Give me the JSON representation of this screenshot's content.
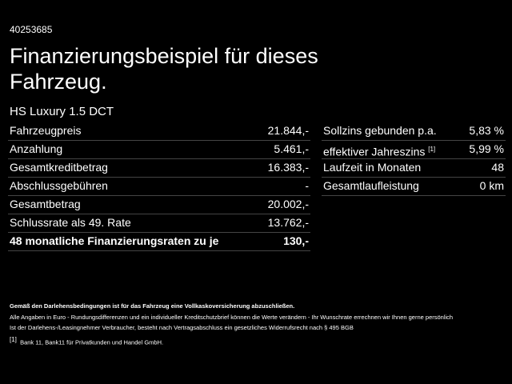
{
  "header": {
    "id": "40253685",
    "title_line1": "Finanzierungsbeispiel für dieses",
    "title_line2": "Fahrzeug.",
    "subtitle": "HS Luxury 1.5 DCT"
  },
  "left_table": {
    "rows": [
      [
        "Fahrzeugpreis",
        "21.844,-"
      ],
      [
        "Anzahlung",
        "5.461,-"
      ],
      [
        "Gesamtkreditbetrag",
        "16.383,-"
      ],
      [
        "Abschlussgebühren",
        "-"
      ],
      [
        "Gesamtbetrag",
        "20.002,-"
      ],
      [
        "Schlussrate als 49. Rate",
        "13.762,-"
      ],
      [
        "48 monatliche Finanzierungsraten zu je",
        "130,-"
      ]
    ]
  },
  "right_table": {
    "rows": [
      [
        "Sollzins gebunden p.a.",
        "5,83 %"
      ],
      [
        "effektiver Jahreszins",
        "5,99 %"
      ],
      [
        "Laufzeit in Monaten",
        "48"
      ],
      [
        "Gesamtlaufleistung",
        "0 km"
      ]
    ],
    "footnote_ref": "[1]"
  },
  "footer": {
    "bold_note": "Gemäß den Darlehensbedingungen ist für das Fahrzeug eine Vollkaskoversicherung abzuschließen.",
    "note_line1": "Alle Angaben in Euro - Rundungsdifferenzen und ein individueller Kreditschutzbrief können die Werte verändern - Ihr Wunschrate errechnen wir Ihnen gerne persönlich",
    "note_line2": "Ist der Darlehens-/Leasingnehmer Verbraucher, besteht nach Vertragsabschluss ein gesetzliches Widerrufsrecht nach § 495 BGB",
    "footnote_marker": "[1]",
    "footnote_text": "Bank 11, Bank11 für Privatkunden und Handel GmbH."
  }
}
